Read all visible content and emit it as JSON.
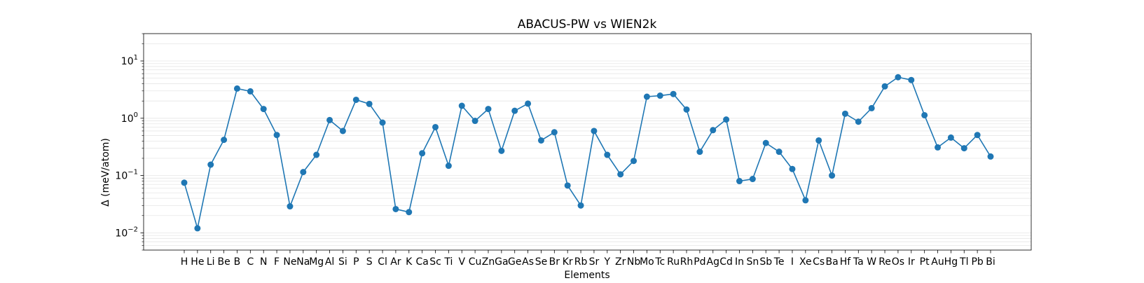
{
  "chart_data": {
    "type": "line",
    "title": "ABACUS-PW vs WIEN2k",
    "xlabel": "Elements",
    "ylabel": "Δ (meV/atom)",
    "yscale": "log",
    "ylim": [
      0.005,
      30
    ],
    "yticks": [
      {
        "value": 0.01,
        "base": "10",
        "exp": "−2"
      },
      {
        "value": 0.1,
        "base": "10",
        "exp": "−1"
      },
      {
        "value": 1,
        "base": "10",
        "exp": "0"
      },
      {
        "value": 10,
        "base": "10",
        "exp": "1"
      }
    ],
    "grid": "horizontal-minor",
    "marker": "circle",
    "color": "#1f77b4",
    "categories": [
      "H",
      "He",
      "Li",
      "Be",
      "B",
      "C",
      "N",
      "F",
      "Ne",
      "Na",
      "Mg",
      "Al",
      "Si",
      "P",
      "S",
      "Cl",
      "Ar",
      "K",
      "Ca",
      "Sc",
      "Ti",
      "V",
      "Cu",
      "Zn",
      "Ga",
      "Ge",
      "As",
      "Se",
      "Br",
      "Kr",
      "Rb",
      "Sr",
      "Y",
      "Zr",
      "Nb",
      "Mo",
      "Tc",
      "Ru",
      "Rh",
      "Pd",
      "Ag",
      "Cd",
      "In",
      "Sn",
      "Sb",
      "Te",
      "I",
      "Xe",
      "Cs",
      "Ba",
      "Hf",
      "Ta",
      "W",
      "Re",
      "Os",
      "Ir",
      "Pt",
      "Au",
      "Hg",
      "Tl",
      "Pb",
      "Bi"
    ],
    "values": [
      0.075,
      0.012,
      0.155,
      0.42,
      3.3,
      2.95,
      1.45,
      0.51,
      0.029,
      0.115,
      0.23,
      0.93,
      0.6,
      2.1,
      1.78,
      0.84,
      0.026,
      0.023,
      0.245,
      0.7,
      0.148,
      1.65,
      0.9,
      1.45,
      0.27,
      1.35,
      1.8,
      0.41,
      0.57,
      0.067,
      0.03,
      0.6,
      0.23,
      0.105,
      0.18,
      2.38,
      2.48,
      2.65,
      1.42,
      0.26,
      0.62,
      0.95,
      0.08,
      0.087,
      0.37,
      0.26,
      0.13,
      0.037,
      0.41,
      0.1,
      1.2,
      0.87,
      1.5,
      3.6,
      5.2,
      4.65,
      1.13,
      0.31,
      0.46,
      0.3,
      0.51,
      0.215
    ]
  }
}
